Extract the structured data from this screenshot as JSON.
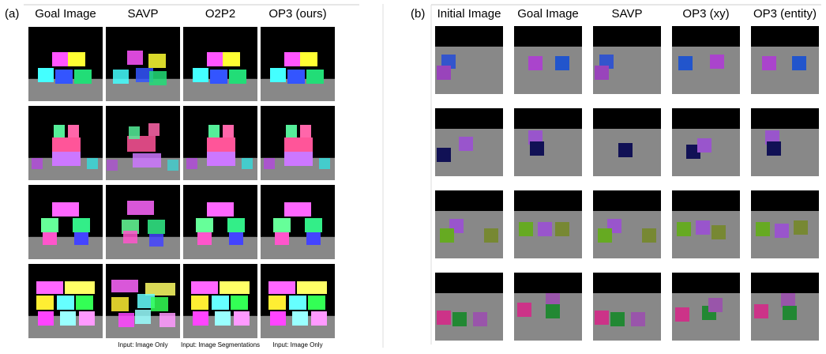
{
  "panel_a": {
    "label": "(a)",
    "columns": [
      "Goal Image",
      "SAVP",
      "O2P2",
      "OP3 (ours)"
    ],
    "notes": [
      "Input: Image Only",
      "Input: Image Segmentations",
      "Input: Image Only"
    ]
  },
  "panel_b": {
    "label": "(b)",
    "columns": [
      "Initial Image",
      "Goal Image",
      "SAVP",
      "OP3 (xy)",
      "OP3 (entity)"
    ]
  }
}
